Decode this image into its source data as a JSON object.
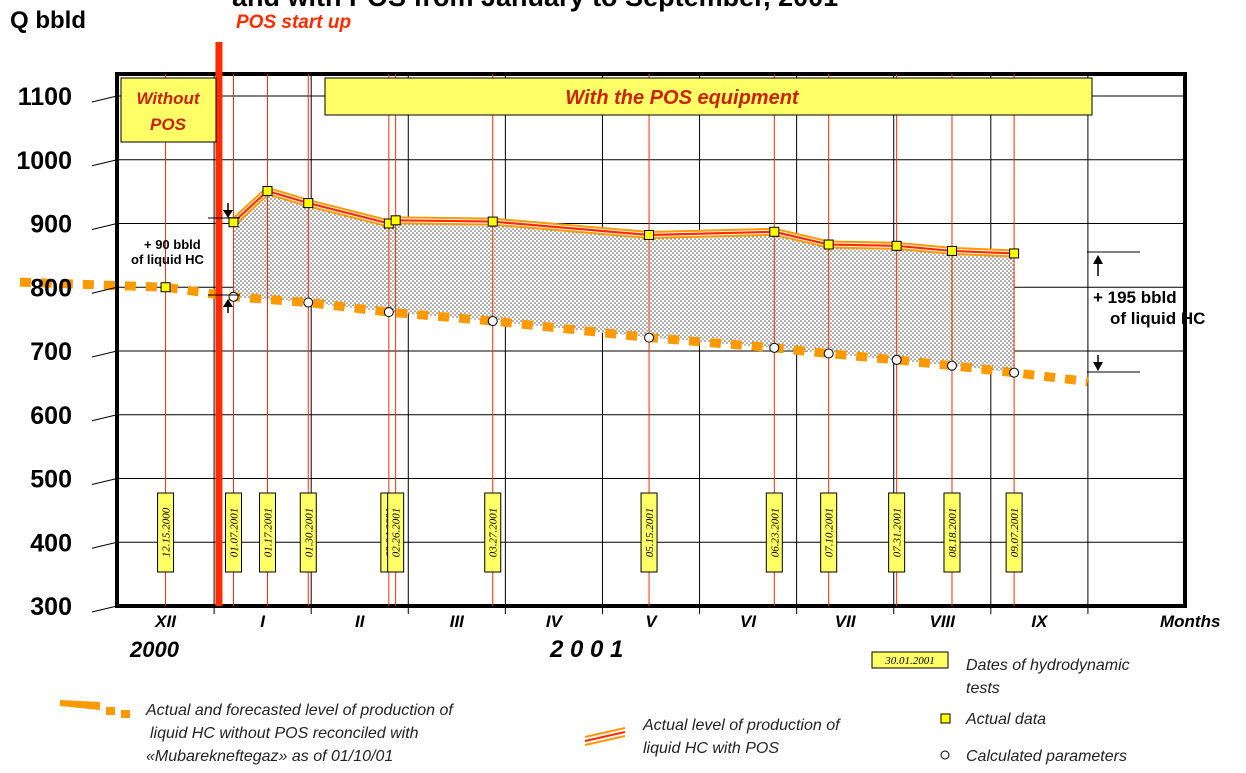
{
  "title_fragment": "and with POS from January to September, 2001",
  "y_axis_label": "Q bbld",
  "x_axis_label": "Months",
  "startup_label": "POS start up",
  "without_pos_label_line1": "Without",
  "without_pos_label_line2": "POS",
  "with_pos_label": "With the POS equipment",
  "year_2000": "2000",
  "year_2001": "2 0 0 1",
  "annotation_90_line1": "+ 90 bbld",
  "annotation_90_line2": "of liquid HC",
  "annotation_195_line1": "+ 195 bbld",
  "annotation_195_line2": "of liquid HC",
  "legend": {
    "dates_sample": "30.01.2001",
    "dates_label_line1": "Dates of hydrodynamic",
    "dates_label_line2": "tests",
    "forecast_line1": "Actual and forecasted level of production of",
    "forecast_line2": "liquid HC without POS reconciled with",
    "forecast_line3": "«Mubarekneftegaz» as of 01/10/01",
    "actual_line1": "Actual  level of production of",
    "actual_line2": "liquid HC with POS",
    "actual_data": "Actual data",
    "calculated": "Calculated parameters"
  },
  "colors": {
    "accent_red": "#ff2a00",
    "orange_dash": "#ff9900",
    "yellow_box": "#ffff66",
    "title_red": "#cc2200"
  },
  "chart_data": {
    "type": "line",
    "ylabel": "Q bbld",
    "xlabel": "Months",
    "ylim": [
      300,
      1150
    ],
    "yticks": [
      300,
      400,
      500,
      600,
      700,
      800,
      900,
      1000,
      1100
    ],
    "months": [
      "XII",
      "I",
      "II",
      "III",
      "IV",
      "V",
      "VI",
      "VII",
      "VIII",
      "IX"
    ],
    "month_positions": [
      0.5,
      1.5,
      2.5,
      3.5,
      4.5,
      5.5,
      6.5,
      7.5,
      8.5,
      9.5
    ],
    "x_domain": [
      0,
      11
    ],
    "pos_startup_x": 1.05,
    "test_dates": [
      {
        "label": "12.15.2000",
        "x": 0.5
      },
      {
        "label": "01.07.2001",
        "x": 1.2
      },
      {
        "label": "01.17.2001",
        "x": 1.55
      },
      {
        "label": "01.30.2001",
        "x": 1.97
      },
      {
        "label": "02.24.2001",
        "x": 2.8
      },
      {
        "label": "02.26.2001",
        "x": 2.87
      },
      {
        "label": "03.27.2001",
        "x": 3.87
      },
      {
        "label": "05.15.2001",
        "x": 5.48
      },
      {
        "label": "06.23.2001",
        "x": 6.77
      },
      {
        "label": "07.10.2001",
        "x": 7.33
      },
      {
        "label": "07.31.2001",
        "x": 8.03
      },
      {
        "label": "08.18.2001",
        "x": 8.6
      },
      {
        "label": "09.07.2001",
        "x": 9.24
      }
    ],
    "series": [
      {
        "name": "Actual level of production of liquid HC with POS",
        "x": [
          1.2,
          1.55,
          1.97,
          2.8,
          2.87,
          3.87,
          5.48,
          6.77,
          7.33,
          8.03,
          8.6,
          9.24
        ],
        "y": [
          902,
          951,
          932,
          900,
          905,
          903,
          882,
          887,
          867,
          865,
          857,
          853
        ]
      },
      {
        "name": "Actual and forecasted level of production of liquid HC without POS",
        "x": [
          -1.0,
          0.5,
          1.2,
          1.97,
          2.8,
          3.87,
          5.48,
          6.77,
          7.33,
          8.03,
          8.6,
          9.24,
          10.0
        ],
        "y": [
          808,
          800,
          785,
          776,
          761,
          747,
          721,
          705,
          696,
          686,
          677,
          666,
          652
        ]
      }
    ],
    "actual_points": {
      "x": [
        0.5,
        1.2,
        1.55,
        1.97,
        2.8,
        2.87,
        3.87,
        5.48,
        6.77,
        7.33,
        8.03,
        8.6,
        9.24
      ],
      "y": [
        800,
        902,
        951,
        932,
        900,
        905,
        903,
        882,
        887,
        867,
        865,
        857,
        853
      ]
    },
    "calculated_points": {
      "x": [
        1.2,
        1.97,
        2.8,
        3.87,
        5.48,
        6.77,
        7.33,
        8.03,
        8.6,
        9.24
      ],
      "y": [
        785,
        776,
        761,
        747,
        721,
        705,
        696,
        686,
        677,
        666
      ]
    },
    "grid": true
  }
}
